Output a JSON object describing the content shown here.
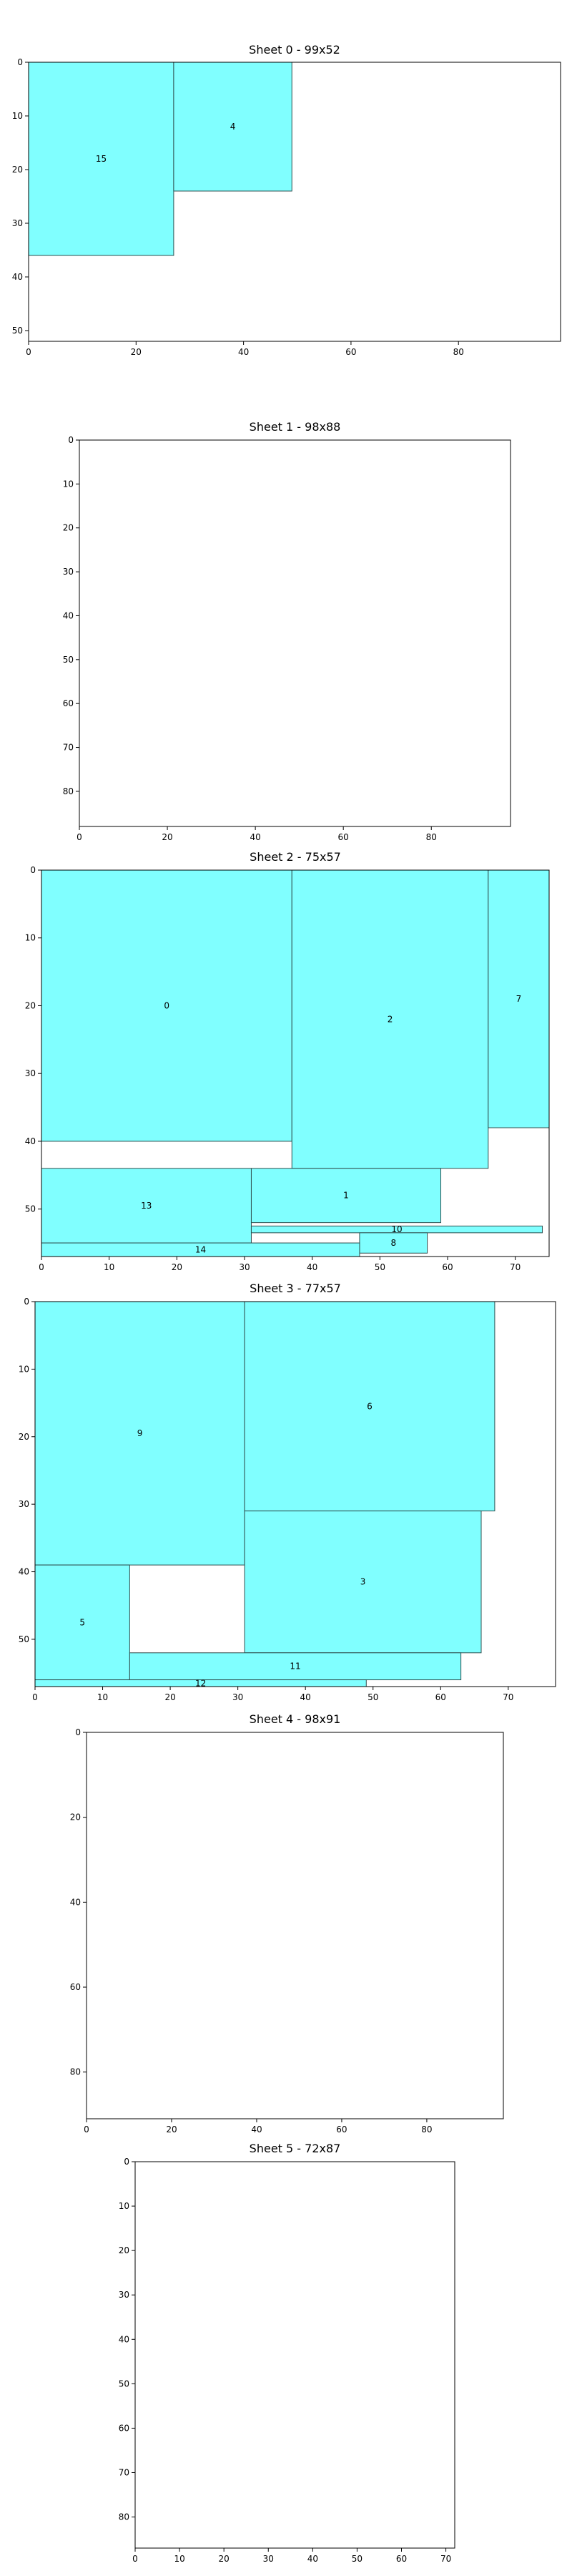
{
  "chart_data": [
    {
      "type": "rectangle-packing",
      "title": "Sheet 0 - 99x52",
      "xlim": [
        0,
        99
      ],
      "ylim": [
        52,
        0
      ],
      "xticks": [
        0,
        20,
        40,
        60,
        80
      ],
      "yticks": [
        0,
        10,
        20,
        30,
        40,
        50
      ],
      "pieces": [
        {
          "label": "15",
          "x": 0,
          "y": 0,
          "w": 27,
          "h": 36
        },
        {
          "label": "4",
          "x": 27,
          "y": 0,
          "w": 22,
          "h": 24
        }
      ]
    },
    {
      "type": "rectangle-packing",
      "title": "Sheet 1 - 98x88",
      "xlim": [
        0,
        98
      ],
      "ylim": [
        88,
        0
      ],
      "xticks": [
        0,
        20,
        40,
        60,
        80
      ],
      "yticks": [
        0,
        10,
        20,
        30,
        40,
        50,
        60,
        70,
        80
      ],
      "pieces": []
    },
    {
      "type": "rectangle-packing",
      "title": "Sheet 2 - 75x57",
      "xlim": [
        0,
        75
      ],
      "ylim": [
        57,
        0
      ],
      "xticks": [
        0,
        10,
        20,
        30,
        40,
        50,
        60,
        70
      ],
      "yticks": [
        0,
        10,
        20,
        30,
        40,
        50
      ],
      "pieces": [
        {
          "label": "0",
          "x": 0,
          "y": 0,
          "w": 37,
          "h": 40
        },
        {
          "label": "2",
          "x": 37,
          "y": 0,
          "w": 29,
          "h": 44
        },
        {
          "label": "7",
          "x": 66,
          "y": 0,
          "w": 9,
          "h": 38
        },
        {
          "label": "13",
          "x": 0,
          "y": 44,
          "w": 31,
          "h": 11
        },
        {
          "label": "1",
          "x": 31,
          "y": 44,
          "w": 28,
          "h": 8
        },
        {
          "label": "10",
          "x": 31,
          "y": 52.5,
          "w": 43,
          "h": 1
        },
        {
          "label": "8",
          "x": 47,
          "y": 53.5,
          "w": 10,
          "h": 3
        },
        {
          "label": "14",
          "x": 0,
          "y": 55,
          "w": 47,
          "h": 2
        }
      ]
    },
    {
      "type": "rectangle-packing",
      "title": "Sheet 3 - 77x57",
      "xlim": [
        0,
        77
      ],
      "ylim": [
        57,
        0
      ],
      "xticks": [
        0,
        10,
        20,
        30,
        40,
        50,
        60,
        70
      ],
      "yticks": [
        0,
        10,
        20,
        30,
        40,
        50
      ],
      "pieces": [
        {
          "label": "9",
          "x": 0,
          "y": 0,
          "w": 31,
          "h": 39
        },
        {
          "label": "6",
          "x": 31,
          "y": 0,
          "w": 37,
          "h": 31
        },
        {
          "label": "3",
          "x": 31,
          "y": 31,
          "w": 35,
          "h": 21
        },
        {
          "label": "5",
          "x": 0,
          "y": 39,
          "w": 14,
          "h": 17
        },
        {
          "label": "11",
          "x": 14,
          "y": 52,
          "w": 49,
          "h": 4
        },
        {
          "label": "12",
          "x": 0,
          "y": 56,
          "w": 49,
          "h": 1
        }
      ]
    },
    {
      "type": "rectangle-packing",
      "title": "Sheet 4 - 98x91",
      "xlim": [
        0,
        98
      ],
      "ylim": [
        91,
        0
      ],
      "xticks": [
        0,
        20,
        40,
        60,
        80
      ],
      "yticks": [
        0,
        20,
        40,
        60,
        80
      ],
      "pieces": []
    },
    {
      "type": "rectangle-packing",
      "title": "Sheet 5 - 72x87",
      "xlim": [
        0,
        72
      ],
      "ylim": [
        87,
        0
      ],
      "xticks": [
        0,
        10,
        20,
        30,
        40,
        50,
        60,
        70
      ],
      "yticks": [
        0,
        10,
        20,
        30,
        40,
        50,
        60,
        70,
        80
      ],
      "pieces": []
    }
  ],
  "colors": {
    "piece_fill": "#80ffff",
    "piece_stroke": "#2f4f4f",
    "axis": "#000000"
  }
}
